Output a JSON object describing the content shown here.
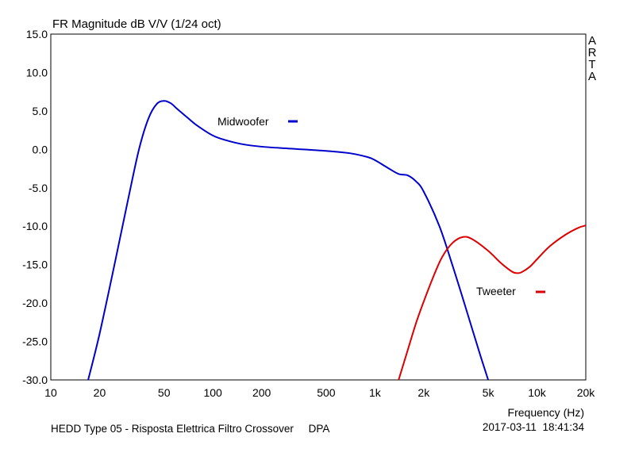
{
  "chart_data": {
    "type": "line",
    "title": "FR Magnitude dB V/V (1/24 oct)",
    "xlabel": "Frequency (Hz)",
    "ylabel": "",
    "x_scale": "log",
    "xlim": [
      10,
      20000
    ],
    "ylim": [
      -30,
      15
    ],
    "grid": true,
    "x_tick_labels": [
      "10",
      "20",
      "50",
      "100",
      "200",
      "500",
      "1k",
      "2k",
      "5k",
      "10k",
      "20k"
    ],
    "y_tick_labels": [
      "15.0",
      "10.0",
      "5.0",
      "0.0",
      "-5.0",
      "-10.0",
      "-15.0",
      "-20.0",
      "-25.0",
      "-30.0"
    ],
    "brand_vertical": "ARTA",
    "footer_left": "HEDD Type 05 - Risposta Elettrica Filtro Crossover     DPA",
    "footer_right": "2017-03-11  18:41:34",
    "series": [
      {
        "name": "Midwoofer",
        "color": "#0000cc",
        "points": [
          [
            17,
            -30
          ],
          [
            20,
            -24
          ],
          [
            25,
            -14.5
          ],
          [
            30,
            -6.5
          ],
          [
            35,
            0
          ],
          [
            40,
            4
          ],
          [
            45,
            5.9
          ],
          [
            50,
            6.3
          ],
          [
            55,
            6
          ],
          [
            60,
            5.3
          ],
          [
            70,
            4.1
          ],
          [
            80,
            3.1
          ],
          [
            100,
            1.8
          ],
          [
            120,
            1.2
          ],
          [
            150,
            0.7
          ],
          [
            200,
            0.35
          ],
          [
            300,
            0.1
          ],
          [
            500,
            -0.2
          ],
          [
            700,
            -0.5
          ],
          [
            900,
            -1.0
          ],
          [
            1000,
            -1.4
          ],
          [
            1200,
            -2.4
          ],
          [
            1400,
            -3.2
          ],
          [
            1600,
            -3.4
          ],
          [
            1800,
            -4.2
          ],
          [
            2000,
            -5.5
          ],
          [
            2500,
            -10
          ],
          [
            3000,
            -15
          ],
          [
            3500,
            -19.5
          ],
          [
            4000,
            -23.5
          ],
          [
            4500,
            -27
          ],
          [
            5000,
            -30
          ]
        ]
      },
      {
        "name": "Tweeter",
        "color": "#dd0000",
        "points": [
          [
            1400,
            -30
          ],
          [
            1600,
            -26
          ],
          [
            1800,
            -22.5
          ],
          [
            2000,
            -19.8
          ],
          [
            2300,
            -16.5
          ],
          [
            2600,
            -14
          ],
          [
            3000,
            -12.2
          ],
          [
            3500,
            -11.4
          ],
          [
            4000,
            -11.7
          ],
          [
            5000,
            -13.2
          ],
          [
            6000,
            -14.8
          ],
          [
            7000,
            -15.9
          ],
          [
            7500,
            -16.1
          ],
          [
            8000,
            -16
          ],
          [
            9000,
            -15.3
          ],
          [
            10000,
            -14.3
          ],
          [
            12000,
            -12.6
          ],
          [
            15000,
            -11.1
          ],
          [
            18000,
            -10.2
          ],
          [
            20000,
            -9.9
          ]
        ]
      }
    ],
    "legend": [
      {
        "name": "Midwoofer",
        "placement": "center-top"
      },
      {
        "name": "Tweeter",
        "placement": "right"
      }
    ]
  }
}
